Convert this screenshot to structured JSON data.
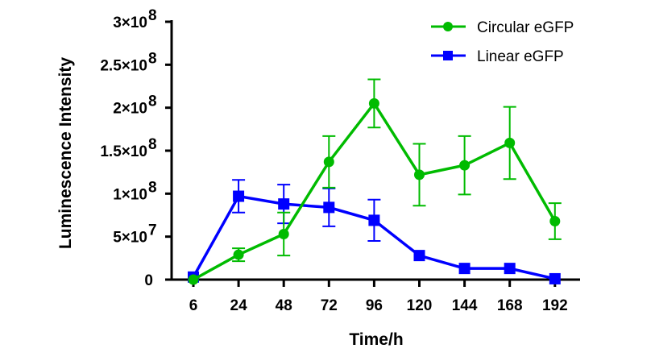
{
  "chart_data": {
    "type": "line",
    "title": "",
    "xlabel": "Time/h",
    "ylabel": "Luminescence Intensity",
    "categories": [
      "6",
      "24",
      "48",
      "72",
      "96",
      "120",
      "144",
      "168",
      "192"
    ],
    "ylim": [
      0,
      300000000
    ],
    "yticks": [
      0,
      50000000,
      100000000,
      150000000,
      200000000,
      250000000,
      300000000
    ],
    "ytick_labels": [
      "0",
      "5×10",
      "1×10",
      "1.5×10",
      "2×10",
      "2.5×10",
      "3×10"
    ],
    "ytick_exponents": [
      "",
      "7",
      "8",
      "8",
      "8",
      "8",
      "8"
    ],
    "legend_position": "top-right",
    "series": [
      {
        "name": "Circular eGFP",
        "color": "#00bb00",
        "marker": "circle",
        "values": [
          0,
          29000000,
          53000000,
          137000000,
          205000000,
          122000000,
          133000000,
          159000000,
          68000000
        ],
        "errors": [
          0,
          7500000,
          25000000,
          30000000,
          28000000,
          36000000,
          34000000,
          42000000,
          21000000
        ]
      },
      {
        "name": "Linear eGFP",
        "color": "#0000ff",
        "marker": "square",
        "values": [
          3000000,
          97000000,
          88000000,
          84000000,
          69000000,
          28000000,
          13000000,
          13000000,
          1000000
        ],
        "errors": [
          0,
          19000000,
          22500000,
          22000000,
          24000000,
          0,
          0,
          0,
          0
        ]
      }
    ]
  }
}
